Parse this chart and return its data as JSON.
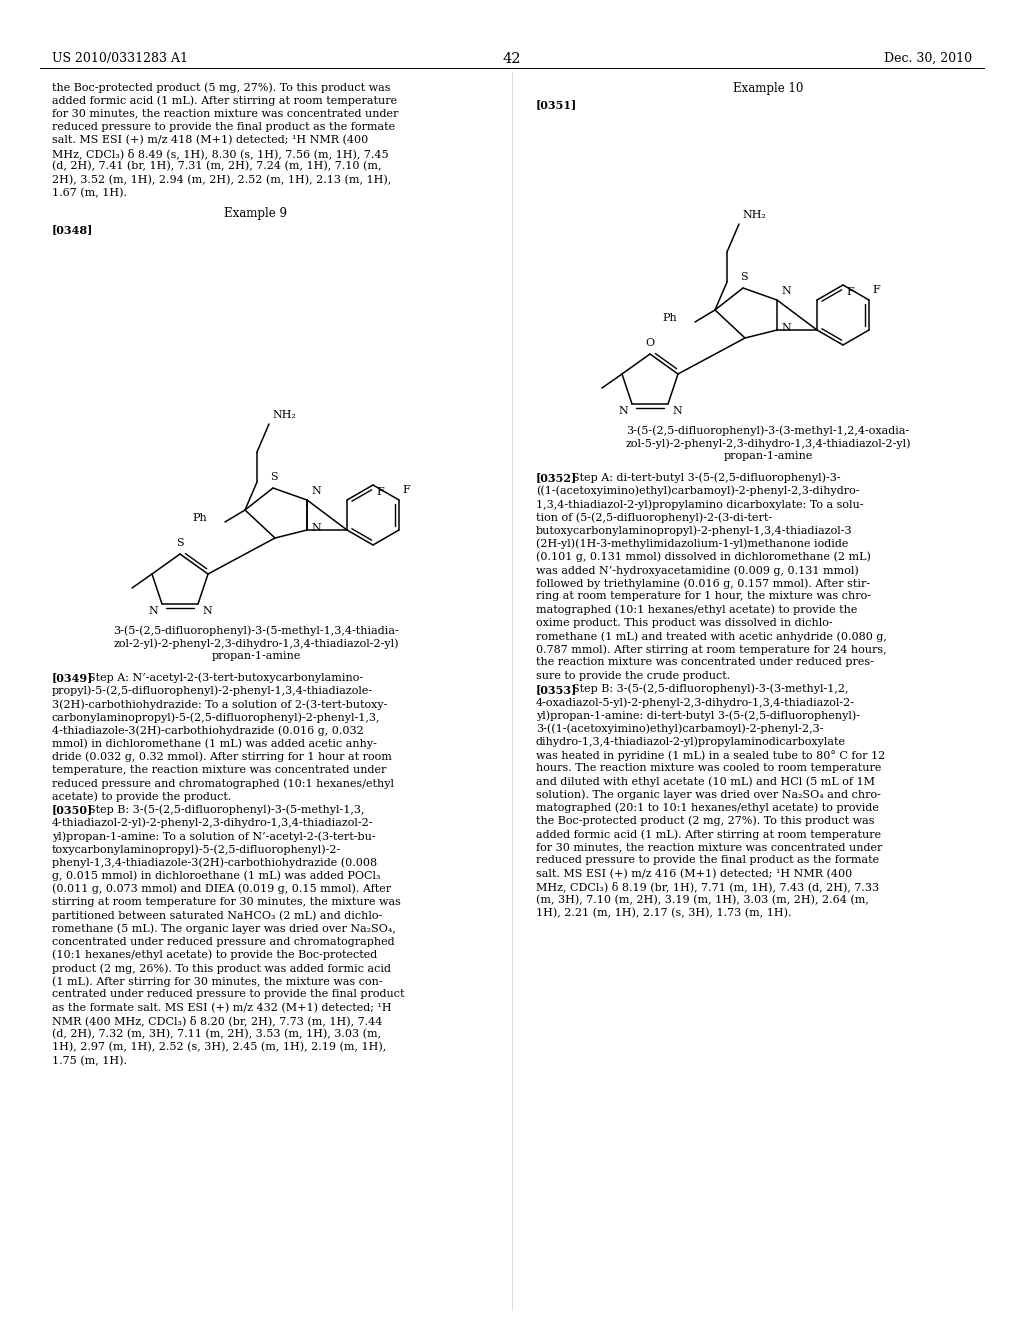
{
  "page_number": "42",
  "patent_number": "US 2010/0331283 A1",
  "patent_date": "Dec. 30, 2010",
  "background_color": "#ffffff",
  "text_color": "#000000",
  "left_intro_lines": [
    "the Boc-protected product (5 mg, 27%). To this product was",
    "added formic acid (1 mL). After stirring at room temperature",
    "for 30 minutes, the reaction mixture was concentrated under",
    "reduced pressure to provide the final product as the formate",
    "salt. MS ESI (+) m/z 418 (M+1) detected; ¹H NMR (400",
    "MHz, CDCl₃) δ 8.49 (s, 1H), 8.30 (s, 1H), 7.56 (m, 1H), 7.45",
    "(d, 2H), 7.41 (br, 1H), 7.31 (m, 2H), 7.24 (m, 1H), 7.10 (m,",
    "2H), 3.52 (m, 1H), 2.94 (m, 2H), 2.52 (m, 1H), 2.13 (m, 1H),",
    "1.67 (m, 1H)."
  ],
  "example9_label": "Example 9",
  "para348": "[0348]",
  "compound1_lines": [
    "3-(5-(2,5-difluorophenyl)-3-(5-methyl-1,3,4-thiadia-",
    "zol-2-yl)-2-phenyl-2,3-dihydro-1,3,4-thiadiazol-2-yl)",
    "propan-1-amine"
  ],
  "para349_label": "[0349]",
  "para349_lines": [
    "Step A: N’-acetyl-2-(3-tert-butoxycarbonylamino-",
    "propyl)-5-(2,5-difluorophenyl)-2-phenyl-1,3,4-thiadiazole-",
    "3(2H)-carbothiohydrazide: To a solution of 2-(3-tert-butoxy-",
    "carbonylaminopropyl)-5-(2,5-difluorophenyl)-2-phenyl-1,3,",
    "4-thiadiazole-3(2H)-carbothiohydrazide (0.016 g, 0.032",
    "mmol) in dichloromethane (1 mL) was added acetic anhy-",
    "dride (0.032 g, 0.32 mmol). After stirring for 1 hour at room",
    "temperature, the reaction mixture was concentrated under",
    "reduced pressure and chromatographed (10:1 hexanes/ethyl",
    "acetate) to provide the product."
  ],
  "para350_label": "[0350]",
  "para350_lines": [
    "Step B: 3-(5-(2,5-difluorophenyl)-3-(5-methyl-1,3,",
    "4-thiadiazol-2-yl)-2-phenyl-2,3-dihydro-1,3,4-thiadiazol-2-",
    "yl)propan-1-amine: To a solution of N’-acetyl-2-(3-tert-bu-",
    "toxycarbonylaminopropyl)-5-(2,5-difluorophenyl)-2-",
    "phenyl-1,3,4-thiadiazole-3(2H)-carbothiohydrazide (0.008",
    "g, 0.015 mmol) in dichloroethane (1 mL) was added POCl₃",
    "(0.011 g, 0.073 mmol) and DIEA (0.019 g, 0.15 mmol). After",
    "stirring at room temperature for 30 minutes, the mixture was",
    "partitioned between saturated NaHCO₃ (2 mL) and dichlo-",
    "romethane (5 mL). The organic layer was dried over Na₂SO₄,",
    "concentrated under reduced pressure and chromatographed",
    "(10:1 hexanes/ethyl acetate) to provide the Boc-protected",
    "product (2 mg, 26%). To this product was added formic acid",
    "(1 mL). After stirring for 30 minutes, the mixture was con-",
    "centrated under reduced pressure to provide the final product",
    "as the formate salt. MS ESI (+) m/z 432 (M+1) detected; ¹H",
    "NMR (400 MHz, CDCl₃) δ 8.20 (br, 2H), 7.73 (m, 1H), 7.44",
    "(d, 2H), 7.32 (m, 3H), 7.11 (m, 2H), 3.53 (m, 1H), 3.03 (m,",
    "1H), 2.97 (m, 1H), 2.52 (s, 3H), 2.45 (m, 1H), 2.19 (m, 1H),",
    "1.75 (m, 1H)."
  ],
  "example10_label": "Example 10",
  "para351": "[0351]",
  "compound2_lines": [
    "3-(5-(2,5-difluorophenyl)-3-(3-methyl-1,2,4-oxadia-",
    "zol-5-yl)-2-phenyl-2,3-dihydro-1,3,4-thiadiazol-2-yl)",
    "propan-1-amine"
  ],
  "para352_label": "[0352]",
  "para352_lines": [
    "Step A: di-tert-butyl 3-(5-(2,5-difluorophenyl)-3-",
    "((1-(acetoxyimino)ethyl)carbamoyl)-2-phenyl-2,3-dihydro-",
    "1,3,4-thiadiazol-2-yl)propylamino dicarboxylate: To a solu-",
    "tion of (5-(2,5-difluorophenyl)-2-(3-di-tert-",
    "butoxycarbonylaminopropyl)-2-phenyl-1,3,4-thiadiazol-3",
    "(2H-yl)(1H-3-methylimidazolium-1-yl)methanone iodide",
    "(0.101 g, 0.131 mmol) dissolved in dichloromethane (2 mL)",
    "was added N’-hydroxyacetamidine (0.009 g, 0.131 mmol)",
    "followed by triethylamine (0.016 g, 0.157 mmol). After stir-",
    "ring at room temperature for 1 hour, the mixture was chro-",
    "matographed (10:1 hexanes/ethyl acetate) to provide the",
    "oxime product. This product was dissolved in dichlo-",
    "romethane (1 mL) and treated with acetic anhydride (0.080 g,",
    "0.787 mmol). After stirring at room temperature for 24 hours,",
    "the reaction mixture was concentrated under reduced pres-",
    "sure to provide the crude product."
  ],
  "para353_label": "[0353]",
  "para353_lines": [
    "Step B: 3-(5-(2,5-difluorophenyl)-3-(3-methyl-1,2,",
    "4-oxadiazol-5-yl)-2-phenyl-2,3-dihydro-1,3,4-thiadiazol-2-",
    "yl)propan-1-amine: di-tert-butyl 3-(5-(2,5-difluorophenyl)-",
    "3-((1-(acetoxyimino)ethyl)carbamoyl)-2-phenyl-2,3-",
    "dihydro-1,3,4-thiadiazol-2-yl)propylaminodicarboxylate",
    "was heated in pyridine (1 mL) in a sealed tube to 80° C for 12",
    "hours. The reaction mixture was cooled to room temperature",
    "and diluted with ethyl acetate (10 mL) and HCl (5 mL of 1M",
    "solution). The organic layer was dried over Na₂SO₄ and chro-",
    "matographed (20:1 to 10:1 hexanes/ethyl acetate) to provide",
    "the Boc-protected product (2 mg, 27%). To this product was",
    "added formic acid (1 mL). After stirring at room temperature",
    "for 30 minutes, the reaction mixture was concentrated under",
    "reduced pressure to provide the final product as the formate",
    "salt. MS ESI (+) m/z 416 (M+1) detected; ¹H NMR (400",
    "MHz, CDCl₃) δ 8.19 (br, 1H), 7.71 (m, 1H), 7.43 (d, 2H), 7.33",
    "(m, 3H), 7.10 (m, 2H), 3.19 (m, 1H), 3.03 (m, 2H), 2.64 (m,",
    "1H), 2.21 (m, 1H), 2.17 (s, 3H), 1.73 (m, 1H)."
  ]
}
